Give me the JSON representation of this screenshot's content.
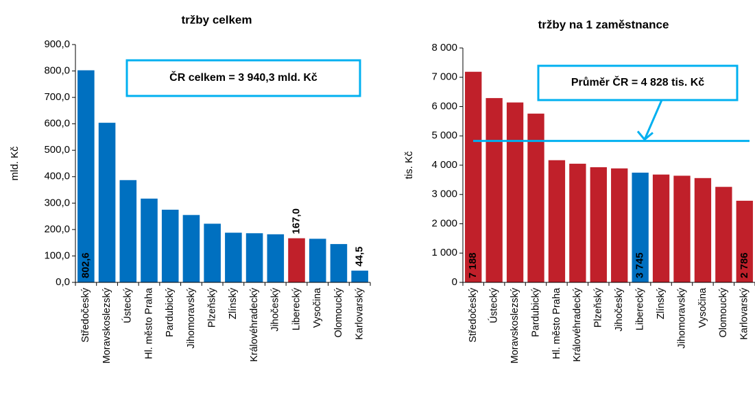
{
  "chart_data": [
    {
      "type": "bar",
      "title": "tržby celkem",
      "ylabel": "mld. Kč",
      "annotation": "ČR celkem = 3 940,3 mld. Kč",
      "categories": [
        "Středočeský",
        "Moravskoslezský",
        "Ústecký",
        "Hl. město Praha",
        "Pardubický",
        "Jihomoravský",
        "Plzeňský",
        "Zlínský",
        "Královéhradecký",
        "Jihočeský",
        "Liberecký",
        "Vysočina",
        "Olomoucký",
        "Karlovarský"
      ],
      "values": [
        802.6,
        604,
        387,
        317,
        275,
        255,
        222,
        188,
        186,
        182,
        167.0,
        165,
        145,
        44.5
      ],
      "value_labels": [
        "802,6",
        null,
        null,
        null,
        null,
        null,
        null,
        null,
        null,
        null,
        "167,0",
        null,
        null,
        "44,5"
      ],
      "colors": [
        "#0070c0",
        "#0070c0",
        "#0070c0",
        "#0070c0",
        "#0070c0",
        "#0070c0",
        "#0070c0",
        "#0070c0",
        "#0070c0",
        "#0070c0",
        "#c0202a",
        "#0070c0",
        "#0070c0",
        "#0070c0"
      ],
      "ylim": [
        0,
        900
      ],
      "yticks": [
        {
          "value": 0,
          "label": "0,0"
        },
        {
          "value": 100,
          "label": "100,0"
        },
        {
          "value": 200,
          "label": "200,0"
        },
        {
          "value": 300,
          "label": "300,0"
        },
        {
          "value": 400,
          "label": "400,0"
        },
        {
          "value": 500,
          "label": "500,0"
        },
        {
          "value": 600,
          "label": "600,0"
        },
        {
          "value": 700,
          "label": "700,0"
        },
        {
          "value": 800,
          "label": "800,0"
        },
        {
          "value": 900,
          "label": "900,0"
        }
      ]
    },
    {
      "type": "bar",
      "title": "tržby na 1 zaměstnance",
      "ylabel": "tis. Kč",
      "reference_line": {
        "value": 4828,
        "label": "Průměr ČR = 4 828 tis. Kč",
        "color": "#00b0f0"
      },
      "categories": [
        "Středočeský",
        "Ústecký",
        "Moravskoslezský",
        "Pardubický",
        "Hl. město Praha",
        "Královéhradecký",
        "Plzeňský",
        "Jihočeský",
        "Liberecký",
        "Zlínský",
        "Jihomoravský",
        "Vysočina",
        "Olomoucký",
        "Karlovarský"
      ],
      "values": [
        7188,
        6290,
        6140,
        5760,
        4170,
        4050,
        3930,
        3890,
        3745,
        3680,
        3640,
        3560,
        3260,
        2786
      ],
      "value_labels": [
        "7 188",
        null,
        null,
        null,
        null,
        null,
        null,
        null,
        "3 745",
        null,
        null,
        null,
        null,
        "2 786"
      ],
      "colors": [
        "#c0202a",
        "#c0202a",
        "#c0202a",
        "#c0202a",
        "#c0202a",
        "#c0202a",
        "#c0202a",
        "#c0202a",
        "#0070c0",
        "#c0202a",
        "#c0202a",
        "#c0202a",
        "#c0202a",
        "#c0202a"
      ],
      "ylim": [
        0,
        8000
      ],
      "yticks": [
        0,
        {
          "value": 1000,
          "label": "1 000"
        },
        {
          "value": 2000,
          "label": "2 000"
        },
        {
          "value": 3000,
          "label": "3 000"
        },
        {
          "value": 4000,
          "label": "4 000"
        },
        {
          "value": 5000,
          "label": "5 000"
        },
        {
          "value": 6000,
          "label": "6 000"
        },
        {
          "value": 7000,
          "label": "7 000"
        },
        {
          "value": 8000,
          "label": "8 000"
        }
      ]
    }
  ]
}
